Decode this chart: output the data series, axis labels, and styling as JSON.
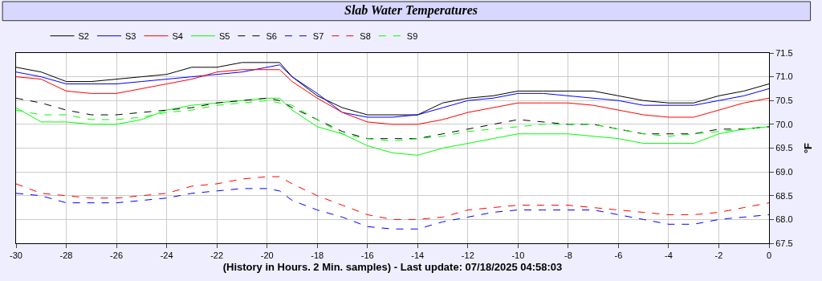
{
  "chart_data": {
    "type": "line",
    "title": "Slab Water Temperatures",
    "xlabel": "(History in Hours. 2 Min. samples) - Last update: 07/18/2025 04:58:03",
    "ylabel": "°F",
    "x": [
      -30,
      -29,
      -28,
      -27,
      -26,
      -25,
      -24,
      -23,
      -22,
      -21,
      -20,
      -19.5,
      -19,
      -18,
      -17,
      -16,
      -15,
      -14,
      -13,
      -12,
      -11,
      -10,
      -9,
      -8,
      -7,
      -6,
      -5,
      -4,
      -3,
      -2,
      -1,
      0
    ],
    "series": [
      {
        "name": "S2",
        "color": "#000000",
        "line_style": "solid",
        "values": [
          71.2,
          71.1,
          70.9,
          70.9,
          70.95,
          71.0,
          71.05,
          71.2,
          71.2,
          71.3,
          71.3,
          71.3,
          71.0,
          70.6,
          70.35,
          70.2,
          70.2,
          70.2,
          70.45,
          70.55,
          70.6,
          70.7,
          70.7,
          70.7,
          70.7,
          70.6,
          70.5,
          70.45,
          70.45,
          70.6,
          70.7,
          70.85
        ]
      },
      {
        "name": "S3",
        "color": "#0000ff",
        "line_style": "solid",
        "values": [
          71.1,
          71.0,
          70.85,
          70.85,
          70.85,
          70.9,
          70.95,
          71.0,
          71.05,
          71.1,
          71.2,
          71.25,
          71.0,
          70.65,
          70.25,
          70.15,
          70.15,
          70.2,
          70.35,
          70.5,
          70.55,
          70.65,
          70.65,
          70.6,
          70.55,
          70.5,
          70.4,
          70.4,
          70.4,
          70.5,
          70.6,
          70.75
        ]
      },
      {
        "name": "S4",
        "color": "#ff0000",
        "line_style": "solid",
        "values": [
          71.0,
          70.95,
          70.7,
          70.65,
          70.65,
          70.75,
          70.85,
          70.95,
          71.1,
          71.15,
          71.15,
          71.15,
          70.9,
          70.55,
          70.25,
          70.05,
          70.0,
          70.0,
          70.1,
          70.25,
          70.35,
          70.45,
          70.45,
          70.45,
          70.4,
          70.3,
          70.2,
          70.15,
          70.15,
          70.3,
          70.45,
          70.55
        ]
      },
      {
        "name": "S5",
        "color": "#00ff00",
        "line_style": "solid",
        "values": [
          70.35,
          70.05,
          70.05,
          70.0,
          70.0,
          70.1,
          70.3,
          70.4,
          70.45,
          70.5,
          70.55,
          70.55,
          70.3,
          69.95,
          69.8,
          69.55,
          69.4,
          69.35,
          69.5,
          69.6,
          69.7,
          69.8,
          69.8,
          69.8,
          69.75,
          69.7,
          69.6,
          69.6,
          69.6,
          69.8,
          69.9,
          69.95
        ]
      },
      {
        "name": "S6",
        "color": "#000000",
        "line_style": "dashed",
        "values": [
          70.55,
          70.45,
          70.3,
          70.2,
          70.2,
          70.25,
          70.3,
          70.35,
          70.45,
          70.5,
          70.55,
          70.5,
          70.35,
          70.1,
          69.85,
          69.7,
          69.7,
          69.7,
          69.8,
          69.9,
          70.0,
          70.1,
          70.05,
          70.0,
          70.0,
          69.9,
          69.8,
          69.8,
          69.8,
          69.9,
          69.9,
          69.95
        ]
      },
      {
        "name": "S7",
        "color": "#0000ff",
        "line_style": "dashed",
        "values": [
          68.55,
          68.5,
          68.35,
          68.35,
          68.35,
          68.4,
          68.45,
          68.55,
          68.6,
          68.65,
          68.65,
          68.6,
          68.4,
          68.2,
          68.05,
          67.85,
          67.8,
          67.8,
          67.95,
          68.05,
          68.15,
          68.2,
          68.2,
          68.2,
          68.2,
          68.1,
          68.0,
          67.9,
          67.9,
          68.0,
          68.05,
          68.1
        ]
      },
      {
        "name": "S8",
        "color": "#ff0000",
        "line_style": "dashed",
        "values": [
          68.75,
          68.55,
          68.5,
          68.45,
          68.45,
          68.5,
          68.55,
          68.7,
          68.75,
          68.85,
          68.9,
          68.9,
          68.75,
          68.5,
          68.3,
          68.1,
          68.0,
          68.0,
          68.05,
          68.2,
          68.25,
          68.3,
          68.3,
          68.3,
          68.25,
          68.2,
          68.15,
          68.1,
          68.1,
          68.15,
          68.25,
          68.35
        ]
      },
      {
        "name": "S9",
        "color": "#00ff00",
        "line_style": "dashed",
        "values": [
          70.3,
          70.2,
          70.2,
          70.1,
          70.1,
          70.15,
          70.25,
          70.3,
          70.4,
          70.45,
          70.5,
          70.45,
          70.4,
          70.1,
          69.8,
          69.7,
          69.65,
          69.7,
          69.75,
          69.85,
          69.9,
          69.95,
          70.0,
          70.0,
          70.0,
          69.9,
          69.8,
          69.75,
          69.8,
          69.85,
          69.9,
          69.95
        ]
      }
    ],
    "xlim": [
      -30,
      0
    ],
    "xticks": [
      -30,
      -28,
      -26,
      -24,
      -22,
      -20,
      -18,
      -16,
      -14,
      -12,
      -10,
      -8,
      -6,
      -4,
      -2,
      0
    ],
    "ylim": [
      67.5,
      71.5
    ],
    "yticks": [
      67.5,
      {
        "value": 68,
        "label": "68.0"
      },
      68.5,
      {
        "value": 69,
        "label": "69.0"
      },
      69.5,
      {
        "value": 70,
        "label": "70.0"
      },
      70.5,
      {
        "value": 71,
        "label": "71.0"
      },
      71.5
    ],
    "grid": true,
    "legend": "top left",
    "marker": "none"
  }
}
